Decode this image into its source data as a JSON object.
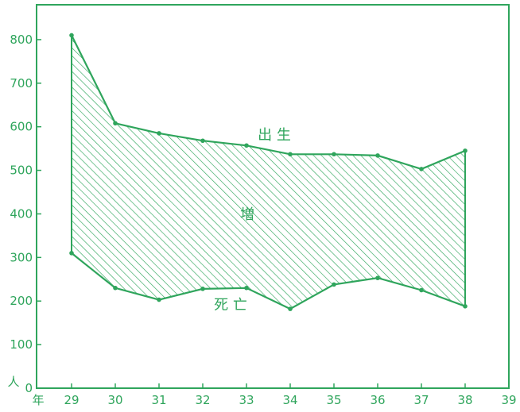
{
  "accent_color": "#2fa55c",
  "chart_data": {
    "type": "area",
    "x": [
      29,
      30,
      31,
      32,
      33,
      34,
      35,
      36,
      37,
      38
    ],
    "x_ticks": [
      "29",
      "30",
      "31",
      "32",
      "33",
      "34",
      "35",
      "36",
      "37",
      "38",
      "39"
    ],
    "y_ticks": [
      "0",
      "100",
      "200",
      "300",
      "400",
      "500",
      "600",
      "700",
      "800"
    ],
    "xlim": [
      28.2,
      39
    ],
    "ylim": [
      0,
      880
    ],
    "xunit": "年",
    "yunit": "人",
    "series": [
      {
        "name": "出 生",
        "values": [
          810,
          608,
          585,
          568,
          557,
          537,
          537,
          534,
          503,
          545
        ]
      },
      {
        "name": "死 亡",
        "values": [
          310,
          230,
          203,
          228,
          230,
          182,
          238,
          253,
          225,
          188
        ]
      }
    ],
    "annotations": {
      "area": "増"
    },
    "hatched_between_series": true,
    "grid": false
  }
}
